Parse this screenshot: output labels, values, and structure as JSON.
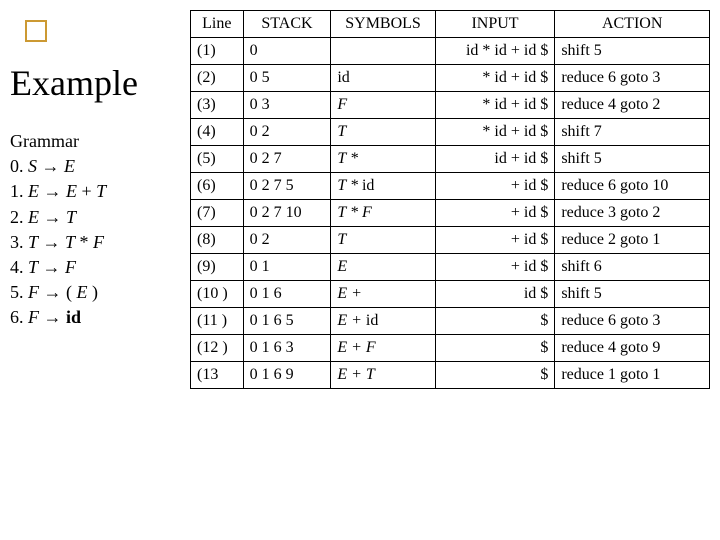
{
  "title": "Example",
  "grammar": {
    "heading": "Grammar",
    "rules": [
      "0. S → E",
      "1. E → E + T",
      "2. E → T",
      "3. T → T * F",
      "4. T → F",
      "5. F → ( E )",
      "6. F → id"
    ]
  },
  "table": {
    "headers": [
      "Line",
      "STACK",
      "SYMBOLS",
      "INPUT",
      "ACTION"
    ],
    "rows": [
      {
        "line": "(1)",
        "stack": "0",
        "symbols": "",
        "input": "id * id + id $",
        "action": "shift 5"
      },
      {
        "line": "(2)",
        "stack": "0 5",
        "symbols": "id",
        "input": "* id + id $",
        "action": "reduce 6 goto 3"
      },
      {
        "line": "(3)",
        "stack": "0 3",
        "symbols": "F",
        "input": "* id + id $",
        "action": "reduce 4 goto 2"
      },
      {
        "line": "(4)",
        "stack": "0 2",
        "symbols": "T",
        "input": "* id + id $",
        "action": "shift 7"
      },
      {
        "line": "(5)",
        "stack": "0 2 7",
        "symbols": "T *",
        "input": "id + id $",
        "action": "shift 5"
      },
      {
        "line": "(6)",
        "stack": "0 2 7 5",
        "symbols": "T * id",
        "input": "+ id $",
        "action": "reduce 6 goto 10"
      },
      {
        "line": "(7)",
        "stack": "0 2 7 10",
        "symbols": "T * F",
        "input": "+ id $",
        "action": "reduce 3 goto 2"
      },
      {
        "line": "(8)",
        "stack": "0 2",
        "symbols": "T",
        "input": "+ id $",
        "action": "reduce 2 goto 1"
      },
      {
        "line": "(9)",
        "stack": "0 1",
        "symbols": "E",
        "input": "+ id $",
        "action": "shift 6"
      },
      {
        "line": "(10 )",
        "stack": "0 1 6",
        "symbols": "E +",
        "input": "id $",
        "action": "shift 5"
      },
      {
        "line": "(11 )",
        "stack": "0 1 6 5",
        "symbols": "E + id",
        "input": "$",
        "action": "reduce 6 goto 3"
      },
      {
        "line": "(12 )",
        "stack": "0 1 6 3",
        "symbols": "E + F",
        "input": "$",
        "action": "reduce 4 goto 9"
      },
      {
        "line": "(13",
        "stack": "0 1 6 9",
        "symbols": "E + T",
        "input": "$",
        "action": "reduce 1 goto 1"
      }
    ]
  },
  "colors": {
    "box_border": "#cc9933",
    "table_border": "#000000",
    "background": "#ffffff"
  },
  "fonts": {
    "title_size": 36,
    "body_size": 18,
    "table_size": 16
  }
}
